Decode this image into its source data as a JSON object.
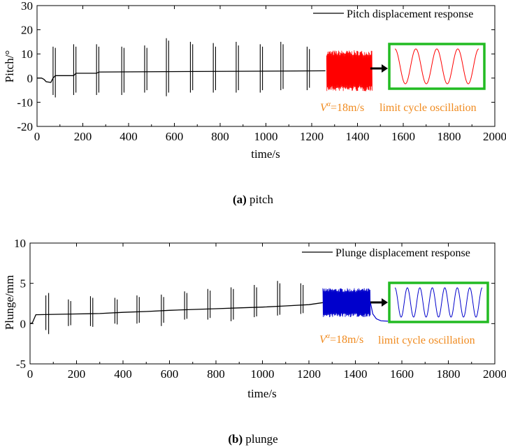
{
  "captions": {
    "a_label": "(a)",
    "a_text": "pitch",
    "b_label": "(b)",
    "b_text": "plunge"
  },
  "colors": {
    "axis": "#000000",
    "pitch_lco": "#ff0000",
    "plunge_lco": "#0000cc",
    "box": "#22bb22",
    "annotation": "#f08a1e"
  },
  "chart_data": [
    {
      "type": "line",
      "title": "",
      "xlabel": "time/s",
      "ylabel": "Pitch/°",
      "xlim": [
        0,
        2000
      ],
      "ylim": [
        -20,
        30
      ],
      "xticks": [
        0,
        200,
        400,
        600,
        800,
        1000,
        1200,
        1400,
        1600,
        1800,
        2000
      ],
      "yticks": [
        -20,
        -10,
        0,
        10,
        20,
        30
      ],
      "legend": "top-right",
      "series": [
        {
          "name": "Pitch displacement response",
          "color": "#000000",
          "points": [
            [
              0,
              0
            ],
            [
              20,
              0
            ],
            [
              30,
              -0.5
            ],
            [
              40,
              -1.5
            ],
            [
              60,
              -1.8
            ],
            [
              70,
              0
            ],
            [
              80,
              1
            ],
            [
              160,
              1
            ],
            [
              170,
              2
            ],
            [
              260,
              2
            ],
            [
              270,
              2.5
            ],
            [
              1260,
              3
            ]
          ],
          "bursts": [
            {
              "t": 70,
              "max": 13,
              "min": -7
            },
            {
              "t": 80,
              "max": 12.5,
              "min": -8
            },
            {
              "t": 160,
              "max": 14,
              "min": -7
            },
            {
              "t": 170,
              "max": 13,
              "min": -6
            },
            {
              "t": 260,
              "max": 14,
              "min": -7
            },
            {
              "t": 270,
              "max": 13,
              "min": -6
            },
            {
              "t": 370,
              "max": 13,
              "min": -7
            },
            {
              "t": 380,
              "max": 12.5,
              "min": -6
            },
            {
              "t": 470,
              "max": 13.5,
              "min": -6
            },
            {
              "t": 480,
              "max": 12.5,
              "min": -5
            },
            {
              "t": 565,
              "max": 16.5,
              "min": -7.5
            },
            {
              "t": 575,
              "max": 15.5,
              "min": -6
            },
            {
              "t": 670,
              "max": 15,
              "min": -6
            },
            {
              "t": 680,
              "max": 14,
              "min": -5
            },
            {
              "t": 770,
              "max": 14.5,
              "min": -6
            },
            {
              "t": 780,
              "max": 13,
              "min": -5
            },
            {
              "t": 870,
              "max": 15,
              "min": -6
            },
            {
              "t": 880,
              "max": 13.5,
              "min": -5
            },
            {
              "t": 975,
              "max": 14,
              "min": -6
            },
            {
              "t": 985,
              "max": 13,
              "min": -5
            },
            {
              "t": 1065,
              "max": 15,
              "min": -5
            },
            {
              "t": 1075,
              "max": 14,
              "min": -4.5
            },
            {
              "t": 1180,
              "max": 13,
              "min": -5
            },
            {
              "t": 1190,
              "max": 12,
              "min": -4
            }
          ]
        },
        {
          "name": "limit cycle oscillation",
          "color": "#ff0000",
          "t_range": [
            1265,
            1465
          ],
          "center": 3,
          "amplitude": 8.5,
          "spike_min": -5.8,
          "spike_max": 12
        }
      ],
      "annotations": [
        "V=18m/s",
        "limit cycle oscillation"
      ],
      "inset": {
        "cycles": 4,
        "color": "#ff0000"
      }
    },
    {
      "type": "line",
      "title": "",
      "xlabel": "time/s",
      "ylabel": "Plunge/mm",
      "xlim": [
        0,
        2000
      ],
      "ylim": [
        -5,
        10
      ],
      "xticks": [
        0,
        200,
        400,
        600,
        800,
        1000,
        1200,
        1400,
        1600,
        1800,
        2000
      ],
      "yticks": [
        -5,
        0,
        5,
        10
      ],
      "legend": "top-right",
      "series": [
        {
          "name": "Plunge displacement response",
          "color": "#000000",
          "points": [
            [
              0,
              0
            ],
            [
              10,
              0.1
            ],
            [
              25,
              1.1
            ],
            [
              100,
              1.15
            ],
            [
              200,
              1.2
            ],
            [
              300,
              1.25
            ],
            [
              400,
              1.4
            ],
            [
              500,
              1.5
            ],
            [
              600,
              1.65
            ],
            [
              700,
              1.75
            ],
            [
              800,
              1.85
            ],
            [
              900,
              1.95
            ],
            [
              1000,
              2.05
            ],
            [
              1100,
              2.2
            ],
            [
              1200,
              2.35
            ],
            [
              1260,
              2.6
            ]
          ],
          "bursts": [
            {
              "t": 68,
              "max": 3.5,
              "min": -0.8
            },
            {
              "t": 80,
              "max": 3.8,
              "min": -1.3
            },
            {
              "t": 165,
              "max": 3.0,
              "min": -0.3
            },
            {
              "t": 175,
              "max": 2.8,
              "min": -0.2
            },
            {
              "t": 260,
              "max": 3.4,
              "min": -0.3
            },
            {
              "t": 270,
              "max": 3.2,
              "min": -0.4
            },
            {
              "t": 365,
              "max": 3.2,
              "min": 0.0
            },
            {
              "t": 375,
              "max": 3.0,
              "min": -0.1
            },
            {
              "t": 460,
              "max": 3.5,
              "min": 0.0
            },
            {
              "t": 470,
              "max": 3.3,
              "min": 0.1
            },
            {
              "t": 565,
              "max": 3.6,
              "min": -0.3
            },
            {
              "t": 575,
              "max": 3.3,
              "min": 0.1
            },
            {
              "t": 665,
              "max": 4.0,
              "min": 0.5
            },
            {
              "t": 675,
              "max": 3.8,
              "min": 0.6
            },
            {
              "t": 765,
              "max": 4.3,
              "min": 0.5
            },
            {
              "t": 775,
              "max": 4.1,
              "min": 0.7
            },
            {
              "t": 865,
              "max": 4.5,
              "min": 0.3
            },
            {
              "t": 875,
              "max": 4.3,
              "min": 0.5
            },
            {
              "t": 965,
              "max": 4.8,
              "min": 0.8
            },
            {
              "t": 975,
              "max": 4.5,
              "min": 0.9
            },
            {
              "t": 1065,
              "max": 5.3,
              "min": 1.0
            },
            {
              "t": 1075,
              "max": 5.0,
              "min": 1.1
            },
            {
              "t": 1165,
              "max": 5.0,
              "min": 1.2
            },
            {
              "t": 1175,
              "max": 4.8,
              "min": 1.3
            }
          ]
        },
        {
          "name": "limit cycle oscillation",
          "color": "#0000cc",
          "t_range": [
            1260,
            1465
          ],
          "center": 2.6,
          "amplitude": 1.8,
          "spike_min": 0.8,
          "spike_max": 5.6,
          "decay": [
            [
              1465,
              2.6
            ],
            [
              1475,
              1.2
            ],
            [
              1490,
              0.6
            ],
            [
              1510,
              0.35
            ],
            [
              1540,
              0.3
            ]
          ]
        }
      ],
      "annotations": [
        "V=18m/s",
        "limit cycle oscillation"
      ],
      "inset": {
        "cycles": 7,
        "color": "#0000cc"
      }
    }
  ]
}
